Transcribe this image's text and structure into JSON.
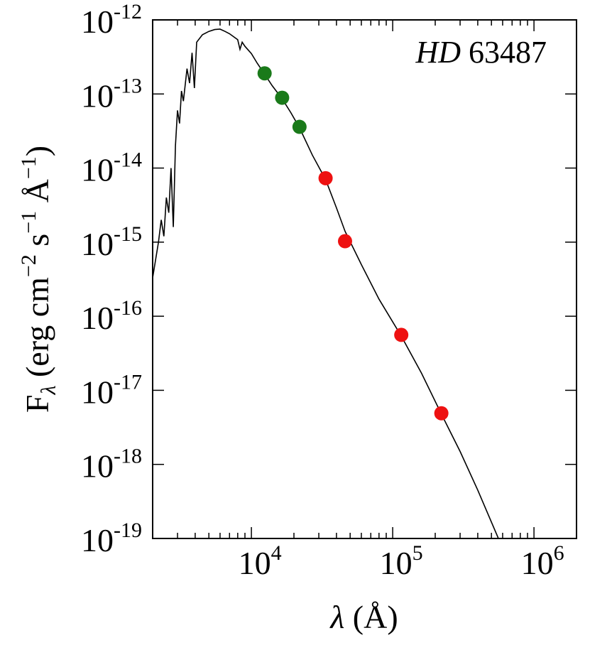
{
  "chart_data": {
    "type": "scatter",
    "title": "HD 63487",
    "title_style": "HD italic, 63487 upright",
    "xlabel": "λ (Å)",
    "ylabel": "F_λ (erg cm^-2 s^-1 Å^-1)",
    "xscale": "log",
    "yscale": "log",
    "xlim": [
      2000,
      2000000
    ],
    "ylim": [
      1e-19,
      1e-12
    ],
    "x_tick_labels": [
      {
        "base": "10",
        "exp": "4",
        "value": 10000
      },
      {
        "base": "10",
        "exp": "5",
        "value": 100000
      },
      {
        "base": "10",
        "exp": "6",
        "value": 1000000
      }
    ],
    "y_tick_labels": [
      {
        "base": "10",
        "exp": "-12",
        "value": 1e-12
      },
      {
        "base": "10",
        "exp": "-13",
        "value": 1e-13
      },
      {
        "base": "10",
        "exp": "-14",
        "value": 1e-14
      },
      {
        "base": "10",
        "exp": "-15",
        "value": 1e-15
      },
      {
        "base": "10",
        "exp": "-16",
        "value": 1e-16
      },
      {
        "base": "10",
        "exp": "-17",
        "value": 1e-17
      },
      {
        "base": "10",
        "exp": "-18",
        "value": 1e-18
      },
      {
        "base": "10",
        "exp": "-19",
        "value": 1e-19
      }
    ],
    "grid": false,
    "series": [
      {
        "marker": "circle",
        "color": "#1a7a1a",
        "points": [
          {
            "x": 12400,
            "y": 1.9e-13
          },
          {
            "x": 16500,
            "y": 8.9e-14
          },
          {
            "x": 21900,
            "y": 3.6e-14
          }
        ]
      },
      {
        "marker": "circle",
        "color": "#ee1111",
        "points": [
          {
            "x": 33500,
            "y": 7.3e-15
          },
          {
            "x": 46000,
            "y": 1.03e-15
          },
          {
            "x": 115000,
            "y": 5.6e-17
          },
          {
            "x": 221000,
            "y": 4.9e-18
          }
        ]
      }
    ],
    "model_curve": {
      "color": "#000000",
      "points": [
        [
          2000,
          3.3e-16
        ],
        [
          2200,
          1e-15
        ],
        [
          2300,
          2e-15
        ],
        [
          2400,
          1.2e-15
        ],
        [
          2500,
          4e-15
        ],
        [
          2600,
          2.5e-15
        ],
        [
          2700,
          1e-14
        ],
        [
          2800,
          1.6e-15
        ],
        [
          2900,
          2e-14
        ],
        [
          3000,
          6e-14
        ],
        [
          3100,
          4e-14
        ],
        [
          3200,
          1.1e-13
        ],
        [
          3300,
          8e-14
        ],
        [
          3500,
          2.2e-13
        ],
        [
          3650,
          1.4e-13
        ],
        [
          3800,
          3.6e-13
        ],
        [
          3950,
          1.2e-13
        ],
        [
          4100,
          5e-13
        ],
        [
          4500,
          6.3e-13
        ],
        [
          5000,
          7e-13
        ],
        [
          5500,
          7.4e-13
        ],
        [
          6000,
          7.5e-13
        ],
        [
          6500,
          7e-13
        ],
        [
          7000,
          6.5e-13
        ],
        [
          8000,
          5.4e-13
        ],
        [
          8300,
          4e-13
        ],
        [
          8600,
          5e-13
        ],
        [
          9000,
          4.4e-13
        ],
        [
          10000,
          3.5e-13
        ],
        [
          11000,
          2.6e-13
        ],
        [
          12400,
          1.85e-13
        ],
        [
          14000,
          1.3e-13
        ],
        [
          16500,
          8.6e-14
        ],
        [
          19000,
          5.6e-14
        ],
        [
          21900,
          3.5e-14
        ],
        [
          27000,
          1.5e-14
        ],
        [
          33500,
          7e-15
        ],
        [
          40000,
          2.9e-15
        ],
        [
          46000,
          1.4e-15
        ],
        [
          60000,
          5e-16
        ],
        [
          80000,
          1.7e-16
        ],
        [
          115000,
          5.4e-17
        ],
        [
          160000,
          1.7e-17
        ],
        [
          221000,
          4.8e-18
        ],
        [
          300000,
          1.5e-18
        ],
        [
          400000,
          4.5e-19
        ],
        [
          560000,
          1e-19
        ]
      ]
    }
  }
}
